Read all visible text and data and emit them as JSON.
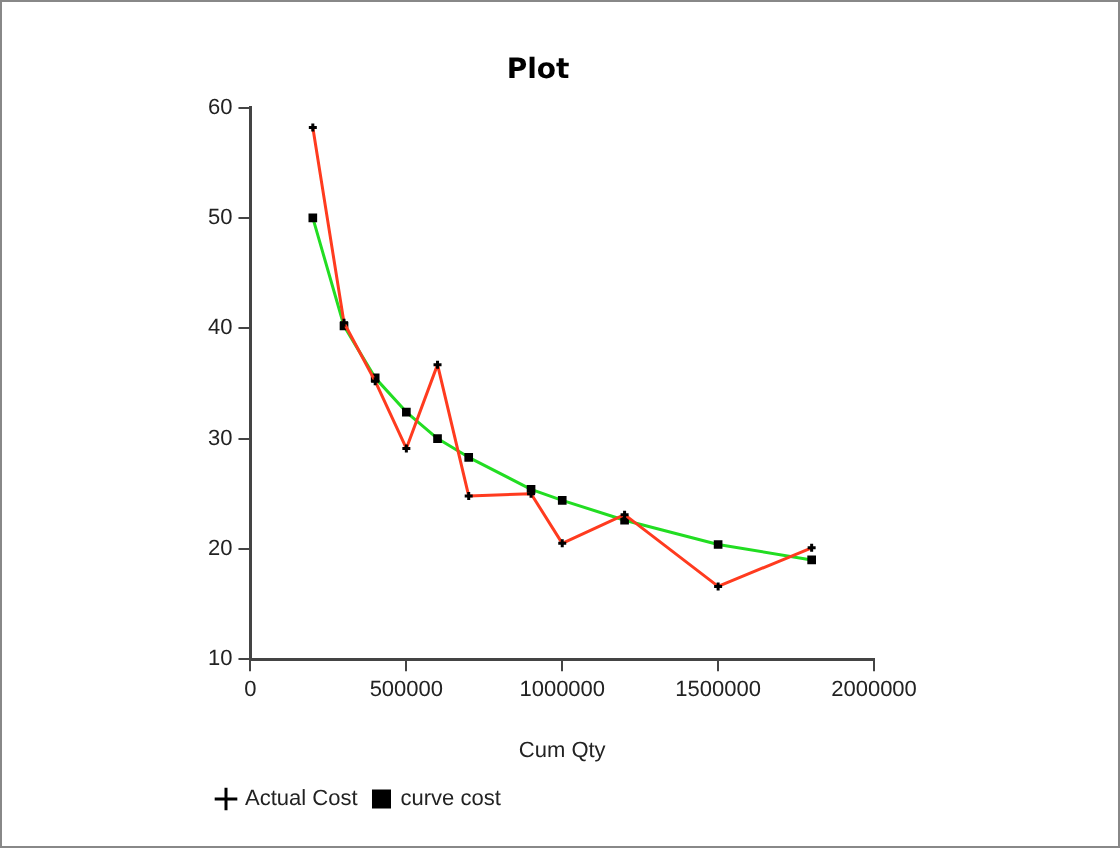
{
  "chart_data": {
    "type": "line",
    "title": "Plot",
    "xlabel": "Cum Qty",
    "x": [
      200000,
      300000,
      400000,
      500000,
      600000,
      700000,
      900000,
      1000000,
      1200000,
      1500000,
      1800000
    ],
    "series": [
      {
        "name": "Actual Cost",
        "color": "#ff3b1f",
        "marker": "cross",
        "values": [
          58.2,
          40.5,
          35.2,
          29.1,
          36.7,
          24.8,
          25,
          20.5,
          23.1,
          16.6,
          20.1
        ]
      },
      {
        "name": "curve cost",
        "color": "#22dd22",
        "marker": "square",
        "values": [
          50,
          40.2,
          35.5,
          32.4,
          30,
          28.3,
          25.4,
          24.4,
          22.6,
          20.4,
          19
        ]
      }
    ],
    "xlim": [
      0,
      2000000
    ],
    "xticks": [
      0,
      500000,
      1000000,
      1500000,
      2000000
    ],
    "ylim": [
      10,
      60
    ],
    "yticks": [
      10,
      20,
      30,
      40,
      50,
      60
    ],
    "grid": false,
    "legend": "bottom left"
  }
}
